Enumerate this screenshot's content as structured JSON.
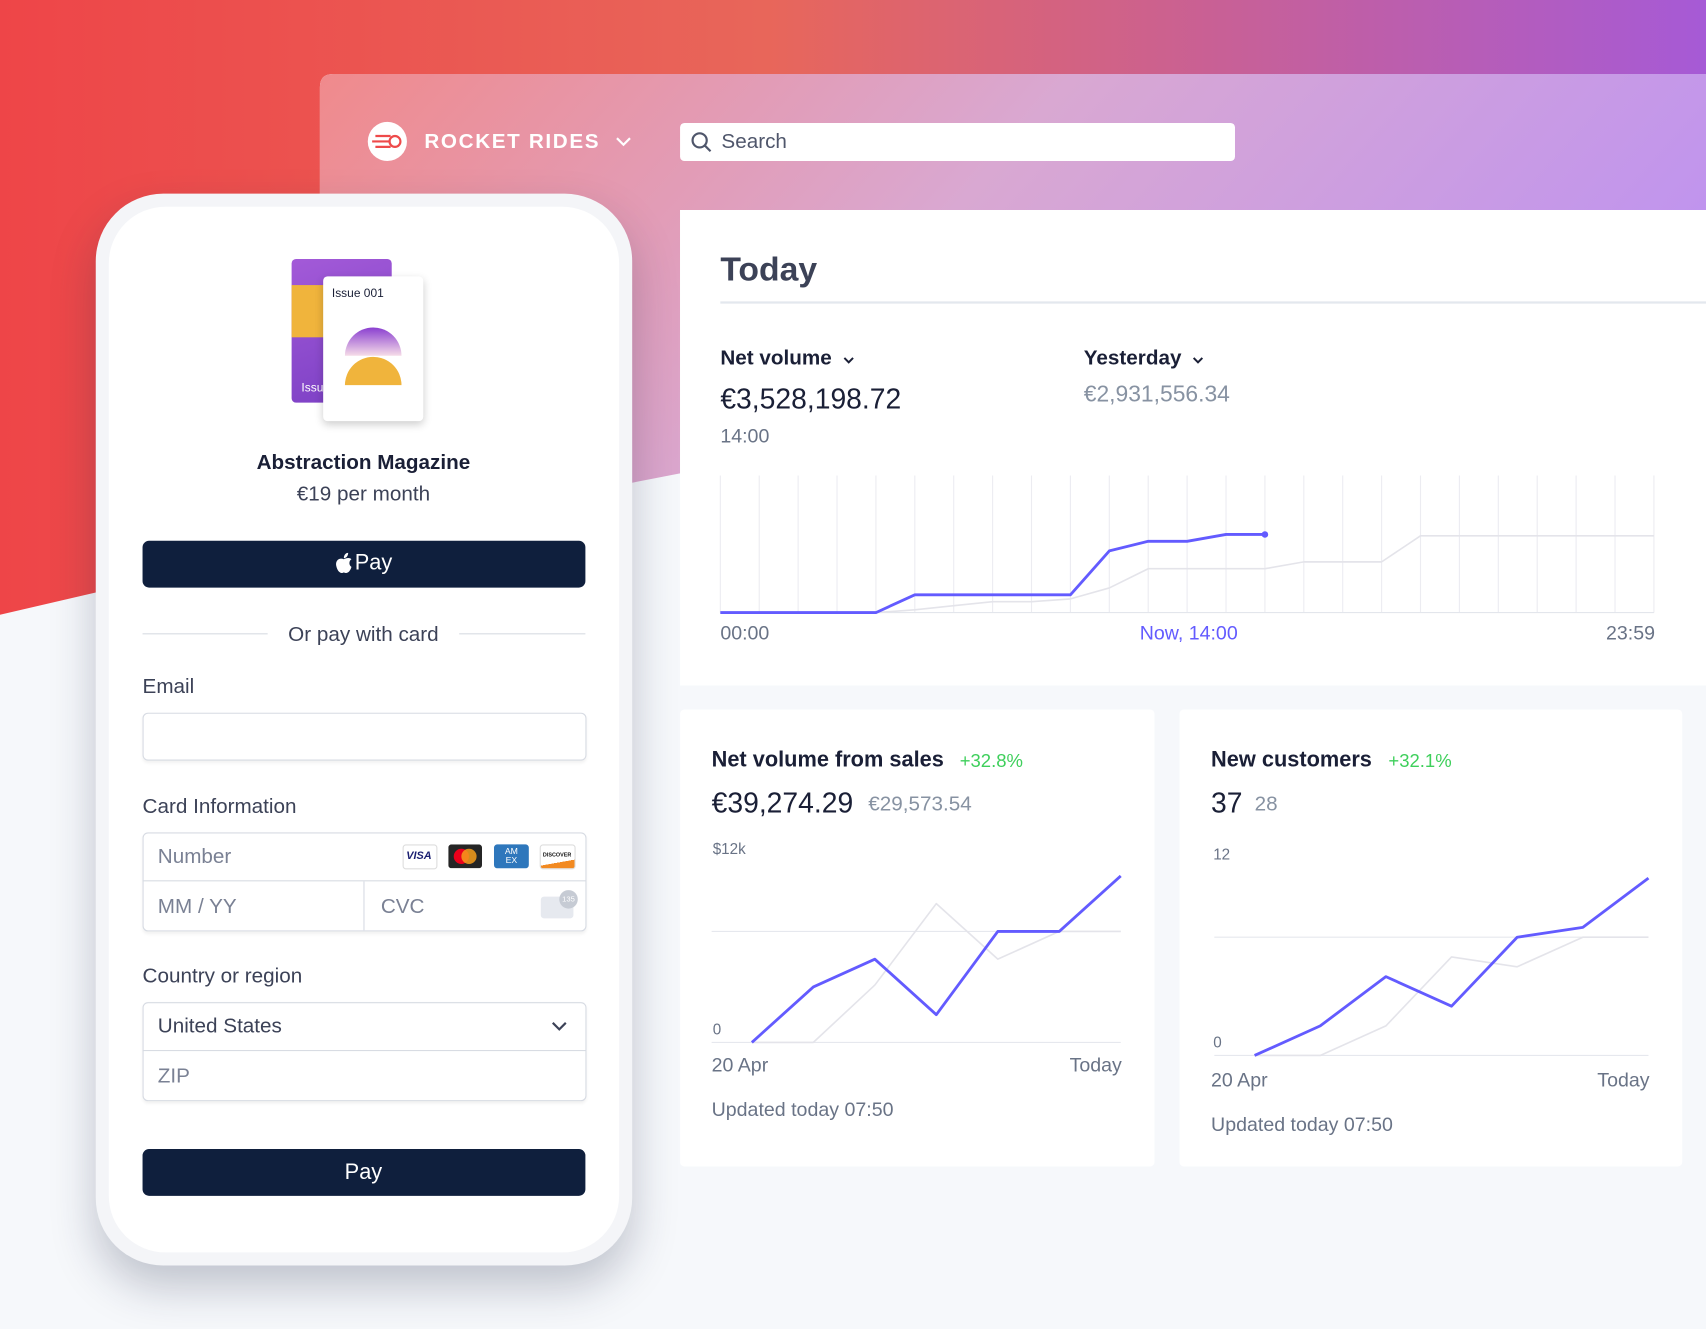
{
  "header": {
    "brand": "ROCKET RIDES",
    "search_placeholder": "Search"
  },
  "checkout": {
    "product_card_label": "Issue 001",
    "product_card_back": "Issu",
    "product_name": "Abstraction Magazine",
    "price": "€19 per month",
    "apple_pay": "Pay",
    "divider": "Or pay with card",
    "email_label": "Email",
    "card_label": "Card Information",
    "number_placeholder": "Number",
    "card_brands": [
      "VISA",
      "AM EX",
      "DISCOVER"
    ],
    "expiry_placeholder": "MM / YY",
    "cvc_placeholder": "CVC",
    "cvc_icon": "135",
    "country_label": "Country or region",
    "country": "United States",
    "zip_placeholder": "ZIP",
    "pay_button": "Pay"
  },
  "dashboard": {
    "title": "Today",
    "metric": {
      "label": "Net volume",
      "value": "€3,528,198.72",
      "time": "14:00",
      "compare_label": "Yesterday",
      "compare_value": "€2,931,556.34"
    },
    "volume_chart": {
      "type": "line",
      "x": [
        0,
        1,
        2,
        3,
        4,
        5,
        6,
        7,
        8,
        9,
        10,
        11,
        12,
        13,
        14,
        15,
        16,
        17,
        18,
        19,
        20,
        21,
        22,
        23,
        24
      ],
      "xlim": [
        0,
        24
      ],
      "ylim": [
        0,
        100
      ],
      "xticks": [
        {
          "value": 0,
          "label": "00:00"
        },
        {
          "value": 14,
          "label": "Now, 14:00"
        },
        {
          "value": 24,
          "label": "23:59"
        }
      ],
      "series": [
        {
          "color": "#e4e4ea",
          "values": [
            0,
            0,
            0,
            0,
            0,
            2,
            5,
            8,
            8,
            10,
            18,
            32,
            32,
            32,
            32,
            37,
            37,
            37,
            56,
            56,
            56,
            56,
            56,
            56,
            56
          ]
        },
        {
          "color": "#635bff",
          "values": [
            0,
            0,
            0,
            0,
            0,
            13,
            13,
            13,
            13,
            13,
            45,
            52,
            52,
            57,
            57,
            null,
            null,
            null,
            null,
            null,
            null,
            null,
            null,
            null,
            null
          ]
        }
      ]
    },
    "cards": [
      {
        "title": "Net volume from sales",
        "change": "+32.8%",
        "value": "€39,274.29",
        "previous": "€29,573.54",
        "updated": "Updated today 07:50",
        "chart": {
          "type": "line",
          "x": [
            0,
            1,
            2,
            3,
            4,
            5,
            6
          ],
          "xlim": [
            0,
            6
          ],
          "ylim": [
            0,
            18000
          ],
          "yticks": [
            0,
            {
              "value": 12000,
              "label": "$12k"
            }
          ],
          "xticks": [
            {
              "value": 0,
              "label": "20 Apr"
            },
            {
              "value": 6,
              "label": "Today"
            }
          ],
          "series": [
            {
              "color": "#e4e4ea",
              "values": [
                0,
                0,
                6200,
                15000,
                9000,
                12000,
                12000
              ]
            },
            {
              "color": "#635bff",
              "values": [
                0,
                6000,
                9000,
                3000,
                12000,
                12000,
                18000
              ]
            }
          ]
        }
      },
      {
        "title": "New customers",
        "change": "+32.1%",
        "value": "37",
        "previous": "28",
        "updated": "Updated today 07:50",
        "chart": {
          "type": "line",
          "x": [
            0,
            1,
            2,
            3,
            4,
            5,
            6
          ],
          "xlim": [
            0,
            6
          ],
          "ylim": [
            0,
            18
          ],
          "yticks": [
            0,
            12
          ],
          "xticks": [
            {
              "value": 0,
              "label": "20 Apr"
            },
            {
              "value": 6,
              "label": "Today"
            }
          ],
          "series": [
            {
              "color": "#e4e4ea",
              "values": [
                0,
                0,
                3,
                10,
                9,
                12,
                12
              ]
            },
            {
              "color": "#635bff",
              "values": [
                0,
                3,
                8,
                5,
                12,
                13,
                18
              ]
            }
          ]
        }
      }
    ]
  }
}
